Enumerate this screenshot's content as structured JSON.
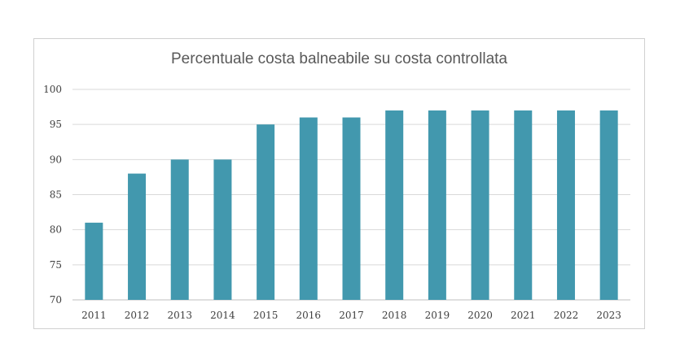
{
  "chart_data": {
    "type": "bar",
    "title": "Percentuale costa balneabile su costa controllata",
    "xlabel": "",
    "ylabel": "",
    "categories": [
      "2011",
      "2012",
      "2013",
      "2014",
      "2015",
      "2016",
      "2017",
      "2018",
      "2019",
      "2020",
      "2021",
      "2022",
      "2023"
    ],
    "values": [
      81,
      88,
      90,
      90,
      95,
      96,
      96,
      97,
      97,
      97,
      97,
      97,
      97
    ],
    "ylim": [
      70,
      100
    ],
    "yticks": [
      "70",
      "75",
      "80",
      "85",
      "90",
      "95",
      "100"
    ],
    "grid": true,
    "legend": "none",
    "bar_color": "#4298AE",
    "grid_color": "#d9d9d9"
  }
}
